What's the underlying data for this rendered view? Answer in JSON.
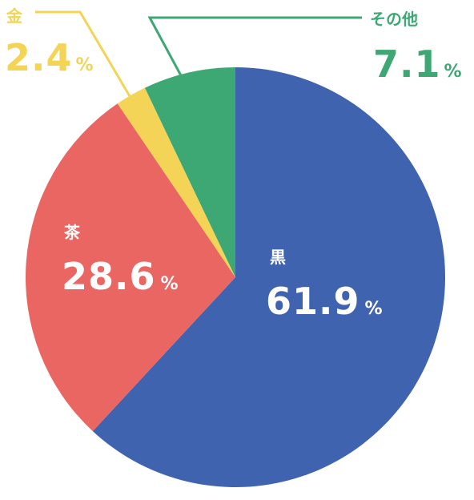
{
  "chart_data": {
    "type": "pie",
    "start_angle_deg": 0,
    "direction": "clockwise",
    "slices": [
      {
        "label": "黒",
        "value": 61.9,
        "display": "61.9",
        "unit": "%",
        "color": "#3F63AE",
        "label_color": "#FFFFFF"
      },
      {
        "label": "茶",
        "value": 28.6,
        "display": "28.6",
        "unit": "%",
        "color": "#E96662",
        "label_color": "#FFFFFF"
      },
      {
        "label": "金",
        "value": 2.4,
        "display": "2.4",
        "unit": "%",
        "color": "#F3D456",
        "label_color": "#F3D456"
      },
      {
        "label": "その他",
        "value": 7.1,
        "display": "7.1",
        "unit": "%",
        "color": "#3EA874",
        "label_color": "#3EA874"
      }
    ]
  }
}
